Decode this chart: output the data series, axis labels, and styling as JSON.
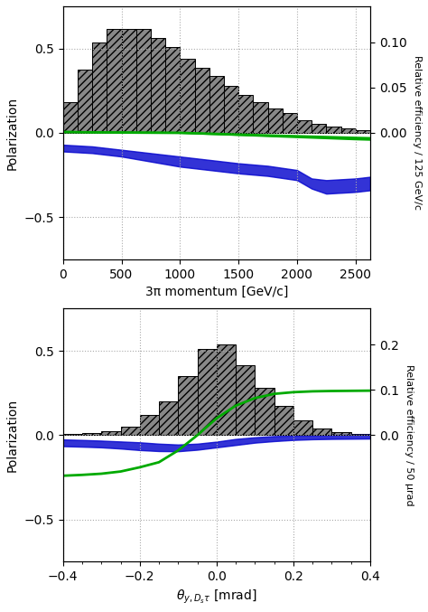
{
  "plot1": {
    "xlim": [
      0,
      2625
    ],
    "ylim": [
      -0.75,
      0.75
    ],
    "ylim2": [
      -0.14,
      0.14
    ],
    "xlabel": "3π momentum [GeV/c]",
    "ylabel": "Polarization",
    "ylabel2": "Relative efficiency / 125 GeV/c",
    "yticks": [
      -0.5,
      0,
      0.5
    ],
    "yticks2": [
      0,
      0.05,
      0.1
    ],
    "xticks": [
      0,
      500,
      1000,
      1500,
      2000,
      2500
    ],
    "hist_edges": [
      0,
      125,
      250,
      375,
      500,
      625,
      750,
      875,
      1000,
      1125,
      1250,
      1375,
      1500,
      1625,
      1750,
      1875,
      2000,
      2125,
      2250,
      2375,
      2500,
      2625
    ],
    "hist_heights": [
      0.034,
      0.07,
      0.1,
      0.115,
      0.115,
      0.115,
      0.105,
      0.095,
      0.082,
      0.072,
      0.063,
      0.052,
      0.042,
      0.034,
      0.027,
      0.022,
      0.014,
      0.01,
      0.007,
      0.005,
      0.003
    ],
    "green_x": [
      0,
      250,
      500,
      750,
      1000,
      1250,
      1500,
      1750,
      2000,
      2250,
      2500,
      2625
    ],
    "green_y": [
      0.005,
      0.003,
      0.002,
      0.001,
      0.0,
      -0.005,
      -0.01,
      -0.015,
      -0.02,
      -0.025,
      -0.03,
      -0.032
    ],
    "blue_x": [
      0,
      250,
      500,
      750,
      1000,
      1250,
      1500,
      1750,
      2000,
      2125,
      2250,
      2375,
      2500,
      2625
    ],
    "blue_y": [
      -0.09,
      -0.1,
      -0.12,
      -0.145,
      -0.17,
      -0.19,
      -0.21,
      -0.225,
      -0.25,
      -0.3,
      -0.32,
      -0.315,
      -0.31,
      -0.3
    ],
    "blue_y_upper": [
      -0.07,
      -0.08,
      -0.1,
      -0.12,
      -0.14,
      -0.16,
      -0.18,
      -0.195,
      -0.22,
      -0.27,
      -0.28,
      -0.275,
      -0.27,
      -0.26
    ],
    "blue_y_lower": [
      -0.11,
      -0.12,
      -0.14,
      -0.17,
      -0.2,
      -0.22,
      -0.24,
      -0.255,
      -0.28,
      -0.33,
      -0.36,
      -0.355,
      -0.35,
      -0.34
    ]
  },
  "plot2": {
    "xlim": [
      -0.4,
      0.4
    ],
    "ylim": [
      -0.75,
      0.75
    ],
    "ylim2": [
      -0.28,
      0.28
    ],
    "xlabel": "$\\theta_{y,D_s\\tau}$ [mrad]",
    "ylabel": "Polarization",
    "ylabel2": "Relative efficiency / 50 μrad",
    "yticks": [
      -0.5,
      0,
      0.5
    ],
    "yticks2": [
      0,
      0.1,
      0.2
    ],
    "xticks": [
      -0.4,
      -0.2,
      0,
      0.2,
      0.4
    ],
    "hist_edges": [
      -0.4,
      -0.35,
      -0.3,
      -0.25,
      -0.2,
      -0.15,
      -0.1,
      -0.05,
      0.0,
      0.05,
      0.1,
      0.15,
      0.2,
      0.25,
      0.3,
      0.35,
      0.4
    ],
    "hist_heights": [
      0.002,
      0.004,
      0.008,
      0.018,
      0.045,
      0.075,
      0.13,
      0.19,
      0.2,
      0.155,
      0.105,
      0.065,
      0.032,
      0.015,
      0.007,
      0.003
    ],
    "green_x": [
      -0.4,
      -0.35,
      -0.3,
      -0.25,
      -0.2,
      -0.15,
      -0.1,
      -0.05,
      0.0,
      0.05,
      0.1,
      0.15,
      0.2,
      0.25,
      0.3,
      0.35,
      0.4
    ],
    "green_y": [
      -0.24,
      -0.235,
      -0.228,
      -0.215,
      -0.19,
      -0.16,
      -0.09,
      0.0,
      0.1,
      0.175,
      0.22,
      0.245,
      0.255,
      0.26,
      0.262,
      0.263,
      0.264
    ],
    "blue_x": [
      -0.4,
      -0.35,
      -0.3,
      -0.25,
      -0.2,
      -0.15,
      -0.1,
      -0.05,
      0.0,
      0.05,
      0.1,
      0.15,
      0.2,
      0.25,
      0.3,
      0.35,
      0.4
    ],
    "blue_y": [
      -0.045,
      -0.048,
      -0.052,
      -0.058,
      -0.065,
      -0.072,
      -0.075,
      -0.068,
      -0.055,
      -0.04,
      -0.028,
      -0.02,
      -0.015,
      -0.012,
      -0.01,
      -0.009,
      -0.008
    ],
    "blue_y_upper": [
      -0.025,
      -0.028,
      -0.032,
      -0.037,
      -0.042,
      -0.05,
      -0.055,
      -0.05,
      -0.038,
      -0.022,
      -0.012,
      -0.005,
      -0.002,
      0.0,
      0.002,
      0.003,
      0.004
    ],
    "blue_y_lower": [
      -0.065,
      -0.068,
      -0.072,
      -0.079,
      -0.088,
      -0.094,
      -0.095,
      -0.086,
      -0.072,
      -0.058,
      -0.044,
      -0.035,
      -0.028,
      -0.024,
      -0.022,
      -0.021,
      -0.02
    ]
  },
  "hist_color": "#888888",
  "hist_hatch": "////",
  "hist_edgecolor": "#000000",
  "green_color": "#00aa00",
  "blue_color": "#0000cc",
  "bg_color": "#ffffff",
  "grid_color": "#aaaaaa",
  "grid_linestyle": "dotted"
}
